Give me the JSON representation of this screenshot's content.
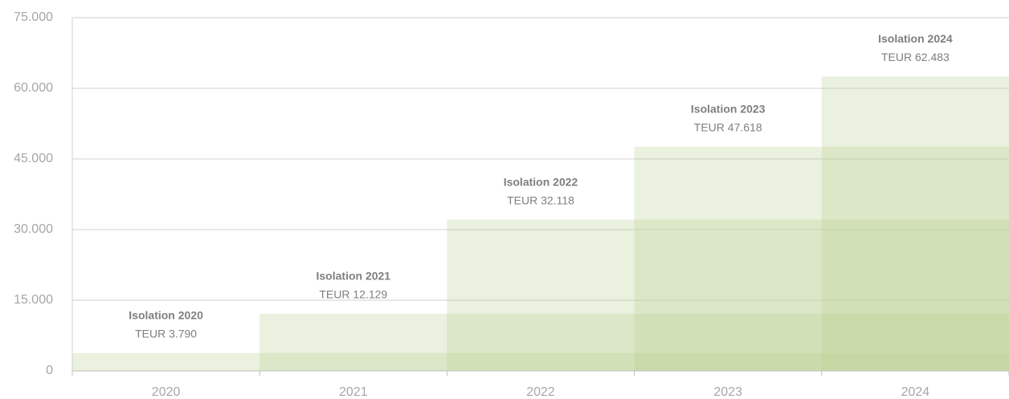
{
  "chart_data": {
    "type": "step_area",
    "categories": [
      "2020",
      "2021",
      "2022",
      "2023",
      "2024"
    ],
    "labels": [
      "Isolation 2020",
      "Isolation 2021",
      "Isolation 2022",
      "Isolation 2023",
      "Isolation 2024"
    ],
    "values": [
      3790,
      12129,
      32118,
      47618,
      62483
    ],
    "value_labels": [
      "TEUR 3.790",
      "TEUR 12.129",
      "TEUR 32.118",
      "TEUR 47.618",
      "TEUR 62.483"
    ],
    "color": "#b9cf93",
    "ylim": [
      0,
      75000
    ],
    "yticks": [
      0,
      {
        "value": 15000,
        "label": "15.000"
      },
      {
        "value": 30000,
        "label": "30.000"
      },
      {
        "value": 45000,
        "label": "45.000"
      },
      {
        "value": 60000,
        "label": "60.000"
      },
      {
        "value": 75000,
        "label": "75.000"
      }
    ],
    "grid": true
  }
}
